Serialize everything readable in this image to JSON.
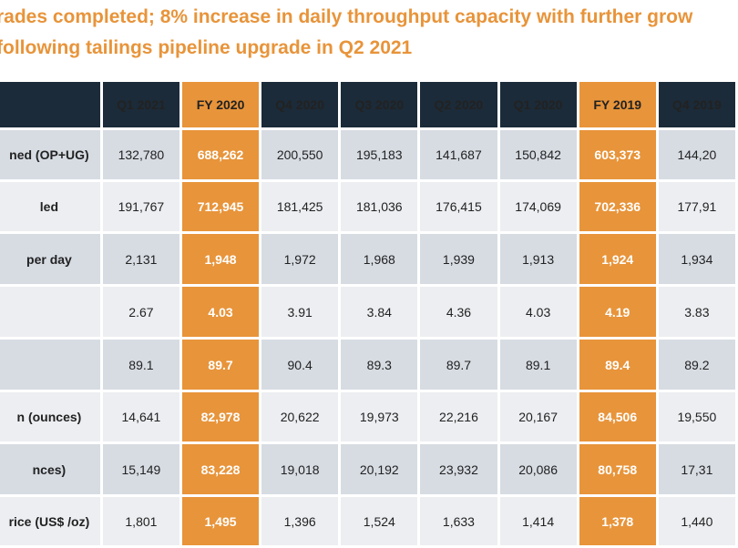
{
  "headline": {
    "line1": "rades completed; 8% increase in daily throughput capacity with further grow",
    "line2": "following tailings pipeline upgrade in Q2 2021"
  },
  "table": {
    "columns": [
      "Q1 2021",
      "FY 2020",
      "Q4 2020",
      "Q3 2020",
      "Q2 2020",
      "Q1 2020",
      "FY 2019",
      "Q4 2019"
    ],
    "rows": [
      {
        "label": "ned (OP+UG)",
        "values": [
          "132,780",
          "688,262",
          "200,550",
          "195,183",
          "141,687",
          "150,842",
          "603,373",
          "144,20"
        ]
      },
      {
        "label": "led",
        "values": [
          "191,767",
          "712,945",
          "181,425",
          "181,036",
          "176,415",
          "174,069",
          "702,336",
          "177,91"
        ]
      },
      {
        "label": "per day",
        "values": [
          "2,131",
          "1,948",
          "1,972",
          "1,968",
          "1,939",
          "1,913",
          "1,924",
          "1,934"
        ]
      },
      {
        "label": "",
        "values": [
          "2.67",
          "4.03",
          "3.91",
          "3.84",
          "4.36",
          "4.03",
          "4.19",
          "3.83"
        ]
      },
      {
        "label": "",
        "values": [
          "89.1",
          "89.7",
          "90.4",
          "89.3",
          "89.7",
          "89.1",
          "89.4",
          "89.2"
        ]
      },
      {
        "label": "n (ounces)",
        "values": [
          "14,641",
          "82,978",
          "20,622",
          "19,973",
          "22,216",
          "20,167",
          "84,506",
          "19,550"
        ]
      },
      {
        "label": "nces)",
        "values": [
          "15,149",
          "83,228",
          "19,018",
          "20,192",
          "23,932",
          "20,086",
          "80,758",
          "17,31"
        ]
      },
      {
        "label": "rice (US$ /oz)",
        "values": [
          "1,801",
          "1,495",
          "1,396",
          "1,524",
          "1,633",
          "1,414",
          "1,378",
          "1,440"
        ]
      }
    ]
  },
  "colors": {
    "header_dark": "#1b2b39",
    "highlight_orange": "#e8943a",
    "row_dark": "#d7dce3",
    "row_light": "#eceef1"
  }
}
